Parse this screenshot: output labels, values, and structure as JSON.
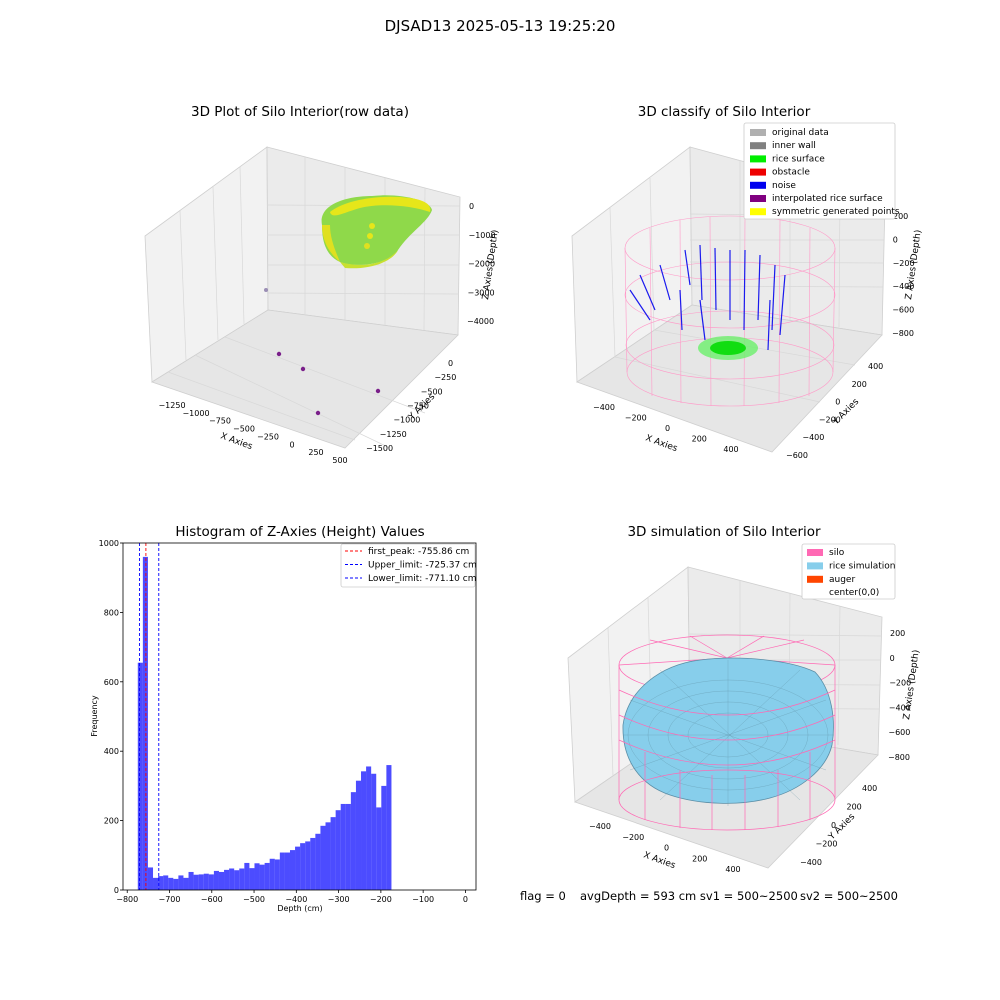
{
  "suptitle": "DJSAD13 2025-05-13 19:25:20",
  "panels": {
    "raw": {
      "title": "3D Plot of Silo Interior(row data)",
      "xlabel": "X Axies",
      "ylabel": "Y Axies",
      "zlabel": "Z Axies (Depth)",
      "xticks": [
        "−1250",
        "−1000",
        "−750",
        "−500",
        "−250",
        "0",
        "250",
        "500"
      ],
      "yticks": [
        "0",
        "−250",
        "−500",
        "−750",
        "−1000",
        "−1250",
        "−1500"
      ],
      "zticks": [
        "0",
        "−1000",
        "−2000",
        "−3000",
        "−4000"
      ]
    },
    "classify": {
      "title": "3D classify of Silo Interior",
      "xlabel": "X Axies",
      "ylabel": "Y Axies",
      "zlabel": "Z Axies (Depth)",
      "xticks": [
        "−400",
        "−200",
        "0",
        "200",
        "400"
      ],
      "yticks": [
        "400",
        "200",
        "0",
        "−200",
        "−400",
        "−600"
      ],
      "zticks": [
        "200",
        "0",
        "−200",
        "−400",
        "−600",
        "−800"
      ],
      "legend": [
        {
          "label": "original data",
          "color": "#b0b0b0"
        },
        {
          "label": "inner wall",
          "color": "#808080"
        },
        {
          "label": "rice surface",
          "color": "#00ee00"
        },
        {
          "label": "obstacle",
          "color": "#ee0000"
        },
        {
          "label": "noise",
          "color": "#0000ee"
        },
        {
          "label": "interpolated rice surface",
          "color": "#800080"
        },
        {
          "label": "symmetric generated points",
          "color": "#ffff00"
        }
      ]
    },
    "simulation": {
      "title": "3D simulation of Silo Interior",
      "xlabel": "X Axies",
      "ylabel": "Y Axies",
      "zlabel": "Z Axies (Depth)",
      "xticks": [
        "−400",
        "−200",
        "0",
        "200",
        "400"
      ],
      "yticks": [
        "400",
        "200",
        "0",
        "−200",
        "−400"
      ],
      "zticks": [
        "200",
        "0",
        "−200",
        "−400",
        "−600",
        "−800"
      ],
      "legend": [
        {
          "label": "silo",
          "color": "#ff69b4"
        },
        {
          "label": "rice simulation",
          "color": "#87ceeb"
        },
        {
          "label": "auger",
          "color": "#ff4500"
        },
        {
          "label": "center(0,0)",
          "color": "#ffffff"
        }
      ]
    }
  },
  "footer": {
    "flag": "flag = 0",
    "avg": "avgDepth = 593 cm  sv1 = 500~2500",
    "sv2": "sv2 = 500~2500"
  },
  "chart_data": [
    {
      "type": "bar",
      "title": "Histogram of Z-Axies (Height) Values",
      "xlabel": "Depth (cm)",
      "ylabel": "Frequency",
      "xlim": [
        -810,
        25
      ],
      "ylim": [
        0,
        1000
      ],
      "xticks": [
        -800,
        -700,
        -600,
        -500,
        -400,
        -300,
        -200,
        -100,
        0
      ],
      "yticks": [
        0,
        200,
        400,
        600,
        800,
        1000
      ],
      "bin_start": -775,
      "bin_width": 12,
      "values": [
        655,
        960,
        65,
        35,
        40,
        42,
        35,
        32,
        42,
        35,
        52,
        44,
        45,
        47,
        45,
        55,
        52,
        58,
        62,
        57,
        62,
        78,
        63,
        77,
        73,
        78,
        90,
        88,
        108,
        108,
        115,
        125,
        135,
        140,
        150,
        162,
        185,
        195,
        210,
        230,
        248,
        248,
        282,
        315,
        342,
        356,
        335,
        238,
        300,
        360
      ],
      "color": "#0000ff",
      "lines": [
        {
          "label": "first_peak: -755.86 cm",
          "x": -755.86,
          "color": "#ff0000"
        },
        {
          "label": "Upper_limit: -725.37 cm",
          "x": -725.37,
          "color": "#0000ff"
        },
        {
          "label": "Lower_limit: -771.10 cm",
          "x": -771.1,
          "color": "#0000ff"
        }
      ]
    }
  ]
}
